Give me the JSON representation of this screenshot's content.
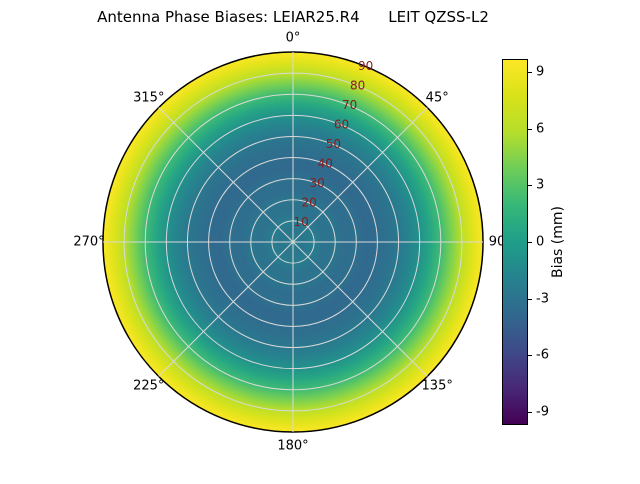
{
  "title": "Antenna Phase Biases: LEIAR25.R4      LEIT QZSS-L2",
  "chart_data": {
    "type": "heatmap",
    "projection": "polar",
    "title": "Antenna Phase Biases: LEIAR25.R4      LEIT QZSS-L2",
    "antenna": "LEIAR25.R4",
    "signal": "LEIT QZSS-L2",
    "angular_tick_labels": [
      "0°",
      "45°",
      "90",
      "135°",
      "180°",
      "225°",
      "270°",
      "315°"
    ],
    "angular_tick_degrees": [
      0,
      45,
      90,
      135,
      180,
      225,
      270,
      315
    ],
    "radial_tick_labels": [
      10,
      20,
      30,
      40,
      50,
      60,
      70,
      80,
      90
    ],
    "radial_axis": "zenith angle (deg), 0 at center to 90 at edge",
    "symmetry": "azimuthally symmetric (bias depends on zenith angle only)",
    "colormap": "viridis",
    "grid": true,
    "colorbar": {
      "label": "Bias (mm)",
      "ticks": [
        9,
        6,
        3,
        0,
        -3,
        -6,
        -9
      ],
      "vmin": -9.7,
      "vmax": 9.7
    },
    "bias_profile": {
      "zenith_deg": [
        0,
        5,
        10,
        15,
        20,
        25,
        30,
        35,
        40,
        45,
        50,
        55,
        60,
        65,
        70,
        75,
        80,
        85,
        90
      ],
      "bias_mm": [
        -2.0,
        -2.8,
        -2.3,
        -3.1,
        -2.8,
        -3.5,
        -3.3,
        -3.8,
        -3.6,
        -3.2,
        -2.7,
        -1.9,
        -0.8,
        0.6,
        2.3,
        4.2,
        6.2,
        8.1,
        9.6
      ]
    },
    "style": {
      "radial_label_color": "#8b1a1a",
      "gridline_color": "#d9d9d9",
      "outline_color": "#000000"
    }
  }
}
